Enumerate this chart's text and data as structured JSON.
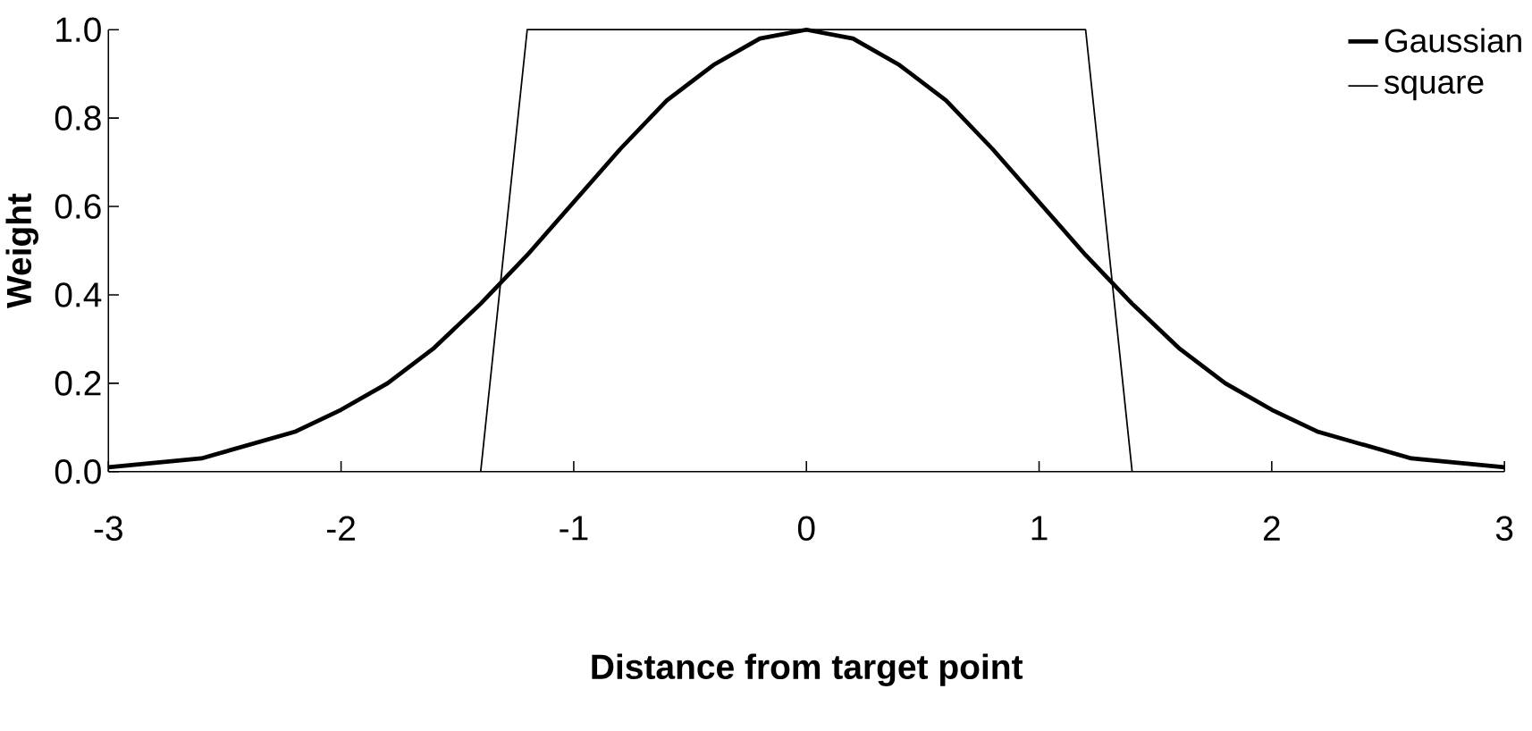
{
  "chart_data": {
    "type": "line",
    "xlabel": "Distance from target point",
    "ylabel": "Weight",
    "xlim": [
      -3,
      3
    ],
    "ylim": [
      0,
      1
    ],
    "xticks": [
      -3,
      -2,
      -1,
      0,
      1,
      2,
      3
    ],
    "yticks": [
      {
        "value": 0,
        "label": "0.0"
      },
      {
        "value": 0.2,
        "label": "0.2"
      },
      {
        "value": 0.4,
        "label": "0.4"
      },
      {
        "value": 0.6,
        "label": "0.6"
      },
      {
        "value": 0.8,
        "label": "0.8"
      },
      {
        "value": 1,
        "label": "1.0"
      }
    ],
    "grid": false,
    "legend": "top right",
    "marker": "none",
    "series": [
      {
        "name": "Gaussian",
        "color": "#000000",
        "x": [
          -3,
          -2.8,
          -2.6,
          -2.4,
          -2.2,
          -2,
          -1.8,
          -1.6,
          -1.4,
          -1.2,
          -1,
          -0.8,
          -0.6,
          -0.4,
          -0.2,
          0,
          0.2,
          0.4,
          0.6,
          0.8,
          1,
          1.2,
          1.4,
          1.6,
          1.8,
          2,
          2.2,
          2.4,
          2.6,
          2.8,
          3
        ],
        "values": [
          0.01,
          0.02,
          0.03,
          0.06,
          0.09,
          0.14,
          0.2,
          0.28,
          0.38,
          0.49,
          0.61,
          0.73,
          0.84,
          0.92,
          0.98,
          1,
          0.98,
          0.92,
          0.84,
          0.73,
          0.61,
          0.49,
          0.38,
          0.28,
          0.2,
          0.14,
          0.09,
          0.06,
          0.03,
          0.02,
          0.01
        ]
      },
      {
        "name": "square",
        "color": "#000000",
        "x": [
          -1.4,
          -1.2,
          1.2,
          1.4
        ],
        "values": [
          0,
          1,
          1,
          0
        ]
      }
    ]
  }
}
